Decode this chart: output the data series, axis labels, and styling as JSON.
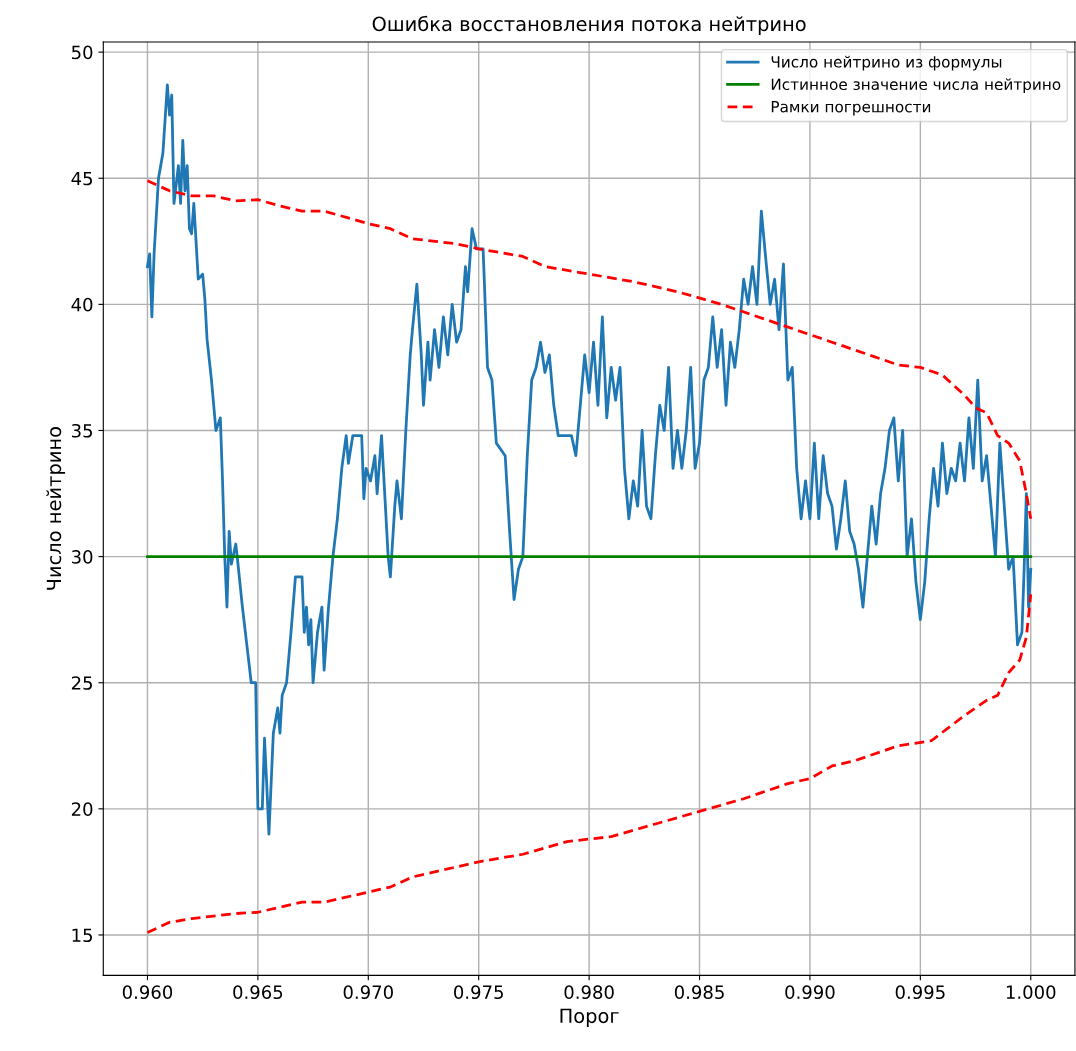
{
  "chart_data": {
    "type": "line",
    "title": "Ошибка восстановления потока нейтрино",
    "xlabel": "Порог",
    "ylabel": "Число нейтрино",
    "xlim": [
      0.958,
      1.002
    ],
    "ylim": [
      13.4,
      50.4
    ],
    "xticks": [
      {
        "value": 0.96,
        "label": "0.960"
      },
      {
        "value": 0.965,
        "label": "0.965"
      },
      {
        "value": 0.97,
        "label": "0.970"
      },
      {
        "value": 0.975,
        "label": "0.975"
      },
      {
        "value": 0.98,
        "label": "0.980"
      },
      {
        "value": 0.985,
        "label": "0.985"
      },
      {
        "value": 0.99,
        "label": "0.990"
      },
      {
        "value": 0.995,
        "label": "0.995"
      },
      {
        "value": 1.0,
        "label": "1.000"
      }
    ],
    "yticks": [
      15,
      20,
      25,
      30,
      35,
      40,
      45,
      50
    ],
    "grid": true,
    "legend": "top right",
    "series": [
      {
        "name": "Число нейтрино из формулы",
        "color": "#1f77b4",
        "line_style": "solid",
        "x": [
          0.96,
          0.9601,
          0.9602,
          0.9603,
          0.9605,
          0.9607,
          0.9609,
          0.961,
          0.9611,
          0.9612,
          0.9614,
          0.9615,
          0.9616,
          0.9617,
          0.9618,
          0.9619,
          0.962,
          0.9621,
          0.9623,
          0.9625,
          0.9626,
          0.9627,
          0.9629,
          0.963,
          0.9631,
          0.9633,
          0.9634,
          0.9635,
          0.9636,
          0.9637,
          0.9638,
          0.964,
          0.9641,
          0.9643,
          0.9645,
          0.9647,
          0.9649,
          0.965,
          0.9652,
          0.9653,
          0.9654,
          0.9655,
          0.9656,
          0.9657,
          0.9659,
          0.966,
          0.9661,
          0.9663,
          0.9665,
          0.9667,
          0.967,
          0.9671,
          0.9672,
          0.9673,
          0.9674,
          0.9675,
          0.9677,
          0.9679,
          0.968,
          0.9682,
          0.9684,
          0.9686,
          0.9688,
          0.969,
          0.9691,
          0.9693,
          0.9697,
          0.9698,
          0.9699,
          0.9701,
          0.9703,
          0.9704,
          0.9706,
          0.9709,
          0.971,
          0.9712,
          0.9713,
          0.9715,
          0.9717,
          0.9719,
          0.972,
          0.9722,
          0.9724,
          0.9725,
          0.9727,
          0.9728,
          0.973,
          0.9732,
          0.9734,
          0.9736,
          0.9738,
          0.974,
          0.9742,
          0.9744,
          0.9745,
          0.9747,
          0.9749,
          0.9752,
          0.9754,
          0.9756,
          0.9758,
          0.9762,
          0.9764,
          0.9766,
          0.9768,
          0.977,
          0.9772,
          0.9774,
          0.9776,
          0.9778,
          0.978,
          0.9782,
          0.9784,
          0.9786,
          0.9792,
          0.9794,
          0.9796,
          0.9798,
          0.98,
          0.9802,
          0.9804,
          0.9806,
          0.9808,
          0.981,
          0.9812,
          0.9814,
          0.9816,
          0.9818,
          0.982,
          0.9822,
          0.9824,
          0.9826,
          0.9828,
          0.983,
          0.9832,
          0.9834,
          0.9836,
          0.9838,
          0.984,
          0.9842,
          0.9844,
          0.9846,
          0.9848,
          0.985,
          0.9852,
          0.9854,
          0.9856,
          0.9858,
          0.986,
          0.9862,
          0.9864,
          0.9866,
          0.9868,
          0.987,
          0.9872,
          0.9874,
          0.9876,
          0.9878,
          0.988,
          0.9882,
          0.9884,
          0.9886,
          0.9888,
          0.989,
          0.9892,
          0.9894,
          0.9896,
          0.9898,
          0.99,
          0.9902,
          0.9904,
          0.9906,
          0.9908,
          0.991,
          0.9912,
          0.9914,
          0.9916,
          0.9918,
          0.992,
          0.9922,
          0.9924,
          0.9926,
          0.9928,
          0.993,
          0.9932,
          0.9934,
          0.9936,
          0.9938,
          0.994,
          0.9942,
          0.9944,
          0.9946,
          0.9948,
          0.995,
          0.9952,
          0.9954,
          0.9956,
          0.9958,
          0.996,
          0.9962,
          0.9964,
          0.9966,
          0.9968,
          0.997,
          0.9972,
          0.9974,
          0.9976,
          0.9978,
          0.998,
          0.9982,
          0.9984,
          0.9986,
          0.9988,
          0.999,
          0.9992,
          0.9994,
          0.9996,
          0.9997,
          0.9998,
          0.9999,
          1.0
        ],
        "values": [
          41.5,
          42,
          39.5,
          42,
          45,
          46,
          48.7,
          47.5,
          48.3,
          44,
          45.5,
          44,
          46.5,
          44.5,
          45.5,
          43,
          42.8,
          44,
          41,
          41.2,
          40.2,
          38.6,
          37,
          36,
          35,
          35.5,
          33,
          30,
          28,
          31,
          29.7,
          30.5,
          29.7,
          28,
          26.5,
          25,
          25,
          20,
          20,
          22.8,
          21,
          19,
          21,
          23,
          24,
          23,
          24.5,
          25,
          27,
          29.2,
          29.2,
          27,
          28,
          26.5,
          27.5,
          25,
          27,
          28,
          25.5,
          28,
          30,
          31.5,
          33.5,
          34.8,
          33.7,
          34.8,
          34.8,
          32.3,
          33.5,
          33,
          34,
          32.5,
          34.8,
          30,
          29.2,
          32,
          33,
          31.5,
          35,
          38,
          39,
          40.8,
          38,
          36,
          38.5,
          37,
          39,
          37.5,
          39.5,
          38,
          40,
          38.5,
          39,
          41.5,
          40.5,
          43,
          42.2,
          42.2,
          37.5,
          37,
          34.5,
          34,
          31,
          28.3,
          29.5,
          30,
          34,
          37,
          37.5,
          38.5,
          37.3,
          38,
          36,
          34.8,
          34.8,
          34,
          36,
          38,
          36.5,
          38.5,
          36,
          39.5,
          35.5,
          37.5,
          36.2,
          37.5,
          33.5,
          31.5,
          33,
          32,
          35,
          32,
          31.5,
          34,
          36,
          35,
          37.5,
          33.5,
          35,
          33.5,
          35,
          37.5,
          33.5,
          34.5,
          37,
          37.5,
          39.5,
          37.5,
          39,
          36,
          38.5,
          37.5,
          39,
          41,
          40,
          41.5,
          40,
          43.7,
          41.8,
          40,
          41,
          39,
          41.6,
          37,
          37.5,
          33.5,
          31.5,
          33,
          31.5,
          34.5,
          31.5,
          34,
          32.5,
          32,
          30.3,
          31.5,
          33,
          31,
          30.5,
          29.5,
          28,
          30,
          32,
          30.5,
          32.5,
          33.5,
          35,
          35.5,
          33,
          35,
          30,
          31.5,
          29,
          27.5,
          29,
          31.5,
          33.5,
          32,
          34.5,
          32.5,
          33.5,
          33,
          34.5,
          33,
          35.5,
          33.5,
          37,
          33,
          34,
          32,
          30,
          34.5,
          32,
          29.5,
          30,
          26.5,
          27,
          29.5,
          32.5,
          28,
          29.5
        ]
      },
      {
        "name": "Истинное значение числа нейтрино",
        "color": "#008000",
        "line_style": "solid",
        "x": [
          0.96,
          1.0
        ],
        "values": [
          30,
          30
        ]
      },
      {
        "name": "Рамки погрешности",
        "color": "#ff0000",
        "line_style": "dashed",
        "x": [
          0.96,
          0.961,
          0.962,
          0.963,
          0.964,
          0.965,
          0.966,
          0.967,
          0.968,
          0.97,
          0.971,
          0.972,
          0.974,
          0.975,
          0.977,
          0.978,
          0.98,
          0.982,
          0.984,
          0.986,
          0.988,
          0.99,
          0.991,
          0.992,
          0.994,
          0.995,
          0.996,
          0.997,
          0.9975,
          0.998,
          0.9985,
          0.999,
          0.9995,
          0.9998,
          1.0
        ],
        "values": [
          44.9,
          44.5,
          44.3,
          44.3,
          44.1,
          44.15,
          43.9,
          43.7,
          43.7,
          43.2,
          43.0,
          42.6,
          42.4,
          42.2,
          41.9,
          41.5,
          41.2,
          40.9,
          40.5,
          40.0,
          39.4,
          38.8,
          38.5,
          38.2,
          37.6,
          37.5,
          37.2,
          36.4,
          35.9,
          35.7,
          34.8,
          34.5,
          33.8,
          32.5,
          31.5
        ]
      },
      {
        "color": "#ff0000",
        "line_style": "dashed",
        "x": [
          0.96,
          0.961,
          0.962,
          0.964,
          0.965,
          0.966,
          0.967,
          0.968,
          0.97,
          0.971,
          0.972,
          0.973,
          0.975,
          0.977,
          0.979,
          0.981,
          0.983,
          0.985,
          0.987,
          0.989,
          0.99,
          0.991,
          0.992,
          0.994,
          0.9955,
          0.997,
          0.998,
          0.9985,
          0.999,
          0.9995,
          0.9998,
          1.0
        ],
        "values": [
          15.1,
          15.5,
          15.65,
          15.85,
          15.9,
          16.1,
          16.3,
          16.3,
          16.7,
          16.9,
          17.3,
          17.5,
          17.9,
          18.2,
          18.7,
          18.9,
          19.4,
          19.9,
          20.4,
          21.0,
          21.2,
          21.7,
          21.9,
          22.5,
          22.7,
          23.7,
          24.3,
          24.5,
          25.4,
          25.9,
          26.8,
          28.5
        ]
      }
    ]
  }
}
